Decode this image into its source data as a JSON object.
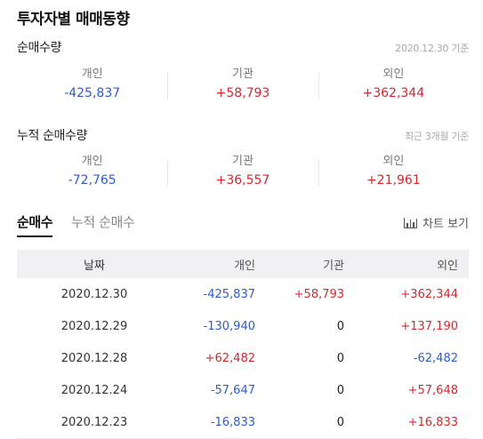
{
  "title": "투자자별 매매동향",
  "daily": {
    "title": "순매수량",
    "note": "2020.12.30 기준",
    "items": [
      {
        "label": "개인",
        "value": "-425,837",
        "sign": "neg"
      },
      {
        "label": "기관",
        "value": "+58,793",
        "sign": "pos"
      },
      {
        "label": "외인",
        "value": "+362,344",
        "sign": "pos"
      }
    ]
  },
  "cumulative": {
    "title": "누적 순매수량",
    "note": "최근 3개월 기준",
    "items": [
      {
        "label": "개인",
        "value": "-72,765",
        "sign": "neg"
      },
      {
        "label": "기관",
        "value": "+36,557",
        "sign": "pos"
      },
      {
        "label": "외인",
        "value": "+21,961",
        "sign": "pos"
      }
    ]
  },
  "tabs": [
    {
      "label": "순매수",
      "active": true
    },
    {
      "label": "누적 순매수",
      "active": false
    }
  ],
  "chart_toggle": {
    "label": "차트 보기",
    "icon": "bar-chart-icon"
  },
  "table": {
    "headers": [
      "날짜",
      "개인",
      "기관",
      "외인"
    ],
    "rows": [
      {
        "date": "2020.12.30",
        "individual": "-425,837",
        "ind_sign": "neg",
        "institution": "+58,793",
        "org_sign": "pos",
        "foreign": "+362,344",
        "for_sign": "pos"
      },
      {
        "date": "2020.12.29",
        "individual": "-130,940",
        "ind_sign": "neg",
        "institution": "0",
        "org_sign": "zero",
        "foreign": "+137,190",
        "for_sign": "pos"
      },
      {
        "date": "2020.12.28",
        "individual": "+62,482",
        "ind_sign": "pos",
        "institution": "0",
        "org_sign": "zero",
        "foreign": "-62,482",
        "for_sign": "neg"
      },
      {
        "date": "2020.12.24",
        "individual": "-57,647",
        "ind_sign": "neg",
        "institution": "0",
        "org_sign": "zero",
        "foreign": "+57,648",
        "for_sign": "pos"
      },
      {
        "date": "2020.12.23",
        "individual": "-16,833",
        "ind_sign": "neg",
        "institution": "0",
        "org_sign": "zero",
        "foreign": "+16,833",
        "for_sign": "pos"
      }
    ]
  },
  "colors": {
    "negative": "#2f5bd3",
    "positive": "#d8262c",
    "neutral": "#222222"
  }
}
